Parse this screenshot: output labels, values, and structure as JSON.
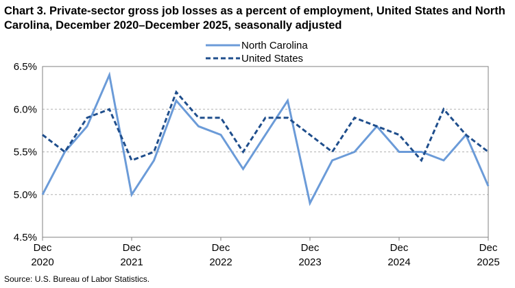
{
  "title": "Chart 3. Private-sector gross job losses as a percent of employment, United States and North Carolina, December 2020–December 2025, seasonally adjusted",
  "source": "Source: U.S. Bureau of Labor Statistics.",
  "chart_data": {
    "type": "line",
    "title": "Chart 3. Private-sector gross job losses as a percent of employment, United States and North Carolina, December 2020–December 2025, seasonally adjusted",
    "xlabel": "",
    "ylabel": "",
    "ylim": [
      4.5,
      6.5
    ],
    "yticks": [
      "4.5%",
      "5.0%",
      "5.5%",
      "6.0%",
      "6.5%"
    ],
    "ytick_values": [
      4.5,
      5.0,
      5.5,
      6.0,
      6.5
    ],
    "x": [
      "Dec 2020",
      "Mar 2021",
      "Jun 2021",
      "Sep 2021",
      "Dec 2021",
      "Mar 2022",
      "Jun 2022",
      "Sep 2022",
      "Dec 2022",
      "Mar 2023",
      "Jun 2023",
      "Sep 2023",
      "Dec 2023",
      "Mar 2024",
      "Jun 2024",
      "Sep 2024",
      "Dec 2024",
      "Mar 2025",
      "Jun 2025",
      "Sep 2025",
      "Dec 2025"
    ],
    "xtick_labels": [
      {
        "month": "Dec",
        "year": "2020",
        "index": 0
      },
      {
        "month": "Dec",
        "year": "2021",
        "index": 4
      },
      {
        "month": "Dec",
        "year": "2022",
        "index": 8
      },
      {
        "month": "Dec",
        "year": "2023",
        "index": 12
      },
      {
        "month": "Dec",
        "year": "2024",
        "index": 16
      },
      {
        "month": "Dec",
        "year": "2025",
        "index": 20
      }
    ],
    "grid": true,
    "legend_position": "top-center",
    "series": [
      {
        "name": "North Carolina",
        "color": "#6b9bd8",
        "style": "solid",
        "values": [
          5.0,
          5.5,
          5.8,
          6.4,
          5.0,
          5.4,
          6.1,
          5.8,
          5.7,
          5.3,
          5.7,
          6.1,
          4.9,
          5.4,
          5.5,
          5.8,
          5.5,
          5.5,
          5.4,
          5.7,
          5.1
        ]
      },
      {
        "name": "United States",
        "color": "#1f4e8c",
        "style": "dashed",
        "values": [
          5.7,
          5.5,
          5.9,
          6.0,
          5.4,
          5.5,
          6.2,
          5.9,
          5.9,
          5.5,
          5.9,
          5.9,
          5.7,
          5.5,
          5.9,
          5.8,
          5.7,
          5.4,
          6.0,
          5.7,
          5.5
        ]
      }
    ]
  }
}
